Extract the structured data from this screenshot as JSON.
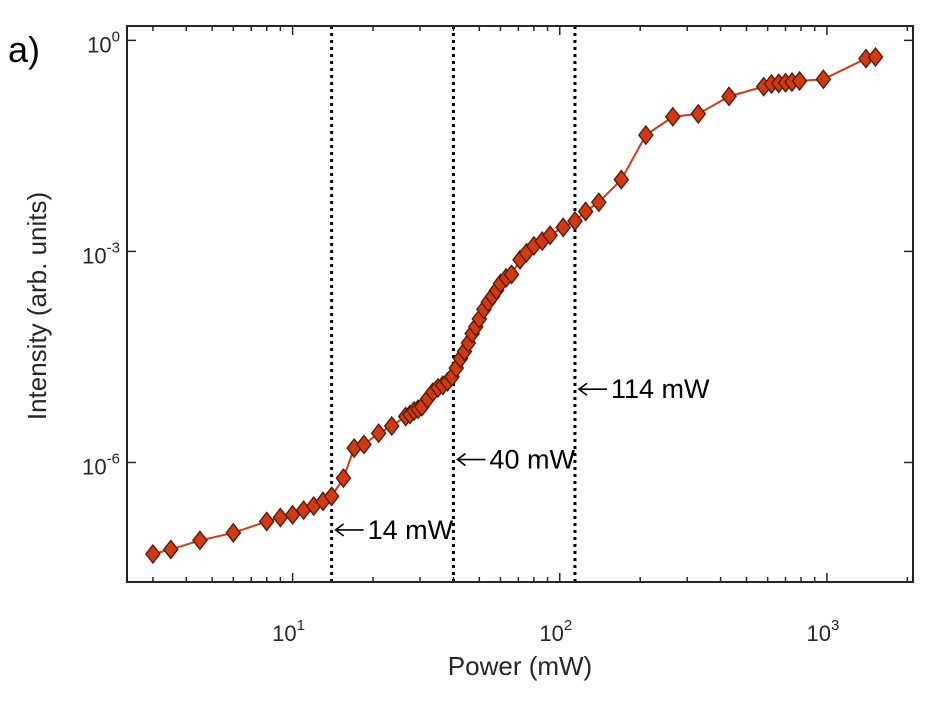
{
  "chart_data": {
    "type": "scatter",
    "panel_label": "a)",
    "title": "",
    "xlabel": "Power (mW)",
    "ylabel": "Intensity (arb. units)",
    "xscale": "log",
    "yscale": "log",
    "xlim": [
      2.4,
      2100
    ],
    "ylim": [
      2e-08,
      1.6
    ],
    "grid": false,
    "x_ticks": [
      {
        "value": 10,
        "base": "10",
        "exp": "1"
      },
      {
        "value": 100,
        "base": "10",
        "exp": "2"
      },
      {
        "value": 1000,
        "base": "10",
        "exp": "3"
      }
    ],
    "y_ticks": [
      {
        "value": 1e-06,
        "base": "10",
        "exp": "-6"
      },
      {
        "value": 0.001,
        "base": "10",
        "exp": "-3"
      },
      {
        "value": 1,
        "base": "10",
        "exp": "0"
      }
    ],
    "series": [
      {
        "name": "Intensity",
        "marker": "diamond",
        "color": "#d03a12",
        "edge_color": "#5a1a08",
        "line_color": "#cc3d1b",
        "points": [
          [
            3.0,
            5e-08
          ],
          [
            3.5,
            5.8e-08
          ],
          [
            4.5,
            7.8e-08
          ],
          [
            6.0,
            1e-07
          ],
          [
            8.0,
            1.45e-07
          ],
          [
            9.0,
            1.65e-07
          ],
          [
            10.0,
            1.8e-07
          ],
          [
            11.0,
            2.1e-07
          ],
          [
            12.0,
            2.4e-07
          ],
          [
            13.0,
            2.8e-07
          ],
          [
            14.0,
            3.3e-07
          ],
          [
            15.5,
            6e-07
          ],
          [
            17.0,
            1.6e-06
          ],
          [
            18.5,
            1.8e-06
          ],
          [
            21.0,
            2.6e-06
          ],
          [
            23.5,
            3.3e-06
          ],
          [
            26.5,
            4.5e-06
          ],
          [
            27.5,
            4.8e-06
          ],
          [
            28.5,
            5.4e-06
          ],
          [
            29.5,
            5.7e-06
          ],
          [
            30.5,
            6.2e-06
          ],
          [
            32.0,
            8e-06
          ],
          [
            33.5,
            1e-05
          ],
          [
            35.0,
            1.15e-05
          ],
          [
            36.5,
            1.25e-05
          ],
          [
            38.0,
            1.4e-05
          ],
          [
            39.5,
            1.65e-05
          ],
          [
            41.0,
            2.2e-05
          ],
          [
            42.5,
            3e-05
          ],
          [
            44.0,
            3.8e-05
          ],
          [
            45.5,
            5e-05
          ],
          [
            47.0,
            6.8e-05
          ],
          [
            48.5,
            8.5e-05
          ],
          [
            50.0,
            0.00011
          ],
          [
            52.0,
            0.00015
          ],
          [
            54.0,
            0.00019
          ],
          [
            56.0,
            0.00023
          ],
          [
            58.0,
            0.00028
          ],
          [
            60.0,
            0.00035
          ],
          [
            63.0,
            0.00042
          ],
          [
            66.0,
            0.00047
          ],
          [
            71.0,
            0.00076
          ],
          [
            75.0,
            0.00095
          ],
          [
            80.0,
            0.0012
          ],
          [
            86.0,
            0.0014
          ],
          [
            92.0,
            0.0017
          ],
          [
            103.0,
            0.0022
          ],
          [
            114.0,
            0.0027
          ],
          [
            125.0,
            0.0037
          ],
          [
            140.0,
            0.005
          ],
          [
            170.0,
            0.0105
          ],
          [
            210.0,
            0.045
          ],
          [
            265.0,
            0.082
          ],
          [
            330.0,
            0.09
          ],
          [
            430.0,
            0.16
          ],
          [
            580.0,
            0.22
          ],
          [
            620.0,
            0.24
          ],
          [
            660.0,
            0.245
          ],
          [
            700.0,
            0.25
          ],
          [
            740.0,
            0.255
          ],
          [
            790.0,
            0.265
          ],
          [
            970.0,
            0.28
          ],
          [
            1400.0,
            0.55
          ],
          [
            1520.0,
            0.58
          ]
        ]
      }
    ],
    "vlines": [
      {
        "x": 14,
        "label": "14 mW",
        "label_y": 1.1e-07
      },
      {
        "x": 40,
        "label": "40 mW",
        "label_y": 1.1e-06
      },
      {
        "x": 114,
        "label": "114 mW",
        "label_y": 1.1e-05
      }
    ]
  }
}
